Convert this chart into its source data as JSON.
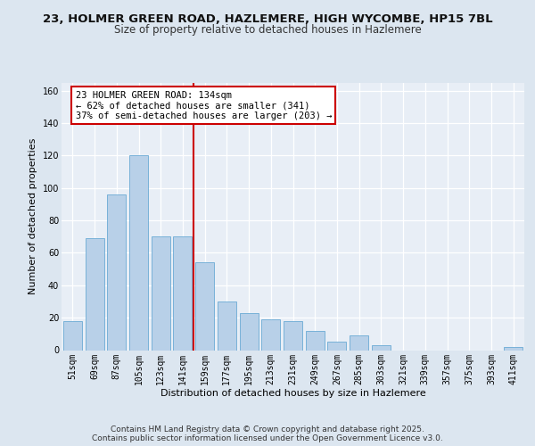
{
  "title1": "23, HOLMER GREEN ROAD, HAZLEMERE, HIGH WYCOMBE, HP15 7BL",
  "title2": "Size of property relative to detached houses in Hazlemere",
  "xlabel": "Distribution of detached houses by size in Hazlemere",
  "ylabel": "Number of detached properties",
  "categories": [
    "51sqm",
    "69sqm",
    "87sqm",
    "105sqm",
    "123sqm",
    "141sqm",
    "159sqm",
    "177sqm",
    "195sqm",
    "213sqm",
    "231sqm",
    "249sqm",
    "267sqm",
    "285sqm",
    "303sqm",
    "321sqm",
    "339sqm",
    "357sqm",
    "375sqm",
    "393sqm",
    "411sqm"
  ],
  "values": [
    18,
    69,
    96,
    120,
    70,
    70,
    54,
    30,
    23,
    19,
    18,
    12,
    5,
    9,
    3,
    0,
    0,
    0,
    0,
    0,
    2
  ],
  "bar_color": "#b8d0e8",
  "bar_edge_color": "#6aaad4",
  "vline_x_idx": 5.5,
  "vline_color": "#cc0000",
  "annotation_line1": "23 HOLMER GREEN ROAD: 134sqm",
  "annotation_line2": "← 62% of detached houses are smaller (341)",
  "annotation_line3": "37% of semi-detached houses are larger (203) →",
  "annotation_box_color": "#ffffff",
  "annotation_box_edge_color": "#cc0000",
  "ylim": [
    0,
    165
  ],
  "yticks": [
    0,
    20,
    40,
    60,
    80,
    100,
    120,
    140,
    160
  ],
  "bg_color": "#dce6f0",
  "plot_bg_color": "#e8eef6",
  "footer_text": "Contains HM Land Registry data © Crown copyright and database right 2025.\nContains public sector information licensed under the Open Government Licence v3.0.",
  "title1_fontsize": 9.5,
  "title2_fontsize": 8.5,
  "xlabel_fontsize": 8,
  "ylabel_fontsize": 8,
  "tick_fontsize": 7,
  "footer_fontsize": 6.5,
  "annot_fontsize": 7.5
}
